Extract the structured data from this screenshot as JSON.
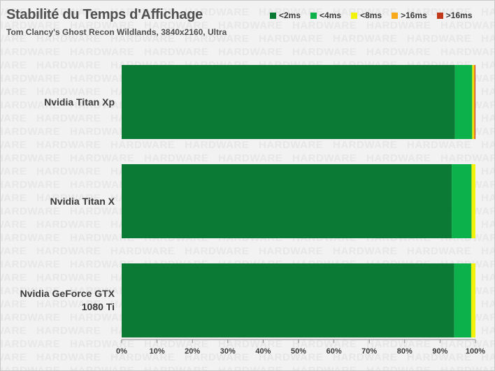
{
  "chart_data": {
    "type": "bar",
    "orientation": "horizontal",
    "stacked": true,
    "title": "Stabilité du Temps d'Affichage",
    "subtitle": "Tom Clancy's Ghost Recon Wildlands, 3840x2160, Ultra",
    "categories": [
      "Nvidia Titan Xp",
      "Nvidia Titan X",
      "Nvidia GeForce GTX 1080 Ti"
    ],
    "series": [
      {
        "name": "<2ms",
        "color": "#0a7a35",
        "values": [
          94.2,
          93.3,
          94.0
        ]
      },
      {
        "name": "<4ms",
        "color": "#0db14b",
        "values": [
          4.9,
          5.6,
          4.8
        ]
      },
      {
        "name": "<8ms",
        "color": "#f2f20a",
        "values": [
          0.4,
          1.1,
          1.2
        ]
      },
      {
        "name": ">16ms",
        "color": "#f7a81b",
        "values": [
          0.3,
          0.0,
          0.0
        ]
      },
      {
        "name": ">16ms",
        "color": "#c0391b",
        "values": [
          0.2,
          0.0,
          0.0
        ]
      }
    ],
    "xlim": [
      0,
      100
    ],
    "xticks": [
      "0%",
      "10%",
      "20%",
      "30%",
      "40%",
      "50%",
      "60%",
      "70%",
      "80%",
      "90%",
      "100%"
    ],
    "grid": false,
    "legend_position": "top-right",
    "watermark": "HARDWARE"
  }
}
